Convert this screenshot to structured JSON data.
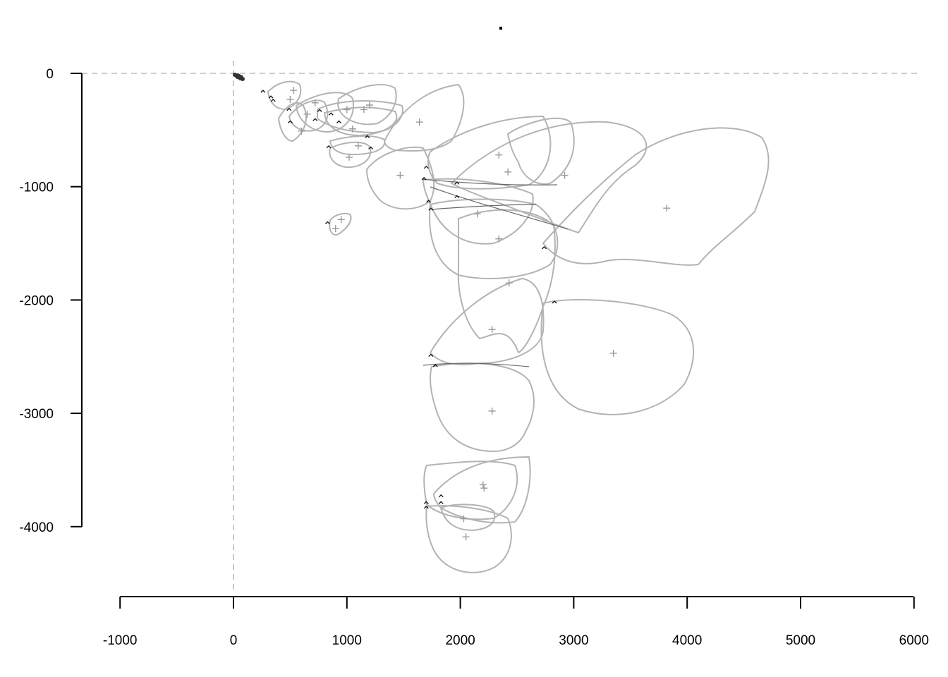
{
  "chart_data": {
    "type": "scatter",
    "title": ".",
    "xlabel": "",
    "ylabel": "",
    "xlim": [
      -1000,
      6000
    ],
    "ylim": [
      -4500,
      0
    ],
    "x_ticks": [
      -1000,
      0,
      1000,
      2000,
      3000,
      4000,
      5000,
      6000
    ],
    "y_ticks": [
      0,
      -1000,
      -2000,
      -3000,
      -4000
    ],
    "x_tick_labels": [
      "-1000",
      "0",
      "1000",
      "2000",
      "3000",
      "4000",
      "5000",
      "6000"
    ],
    "y_tick_labels": [
      "0",
      "-1000",
      "-2000",
      "-3000",
      "-4000"
    ],
    "reference_lines": {
      "x": 0,
      "y": 0
    },
    "grid": false,
    "colors": {
      "outline": "#b3b3b3",
      "centroid": "#9a9a9a",
      "arrow": "#111111",
      "reference": "#bdbdbd"
    },
    "centroids": [
      {
        "x": 3820,
        "y": -1190
      },
      {
        "x": 3350,
        "y": -2470
      },
      {
        "x": 2280,
        "y": -2980
      },
      {
        "x": 2430,
        "y": -1850
      },
      {
        "x": 2280,
        "y": -2260
      },
      {
        "x": 2340,
        "y": -1460
      },
      {
        "x": 2150,
        "y": -1240
      },
      {
        "x": 2340,
        "y": -720
      },
      {
        "x": 2920,
        "y": -900
      },
      {
        "x": 2420,
        "y": -870
      },
      {
        "x": 1470,
        "y": -900
      },
      {
        "x": 1640,
        "y": -430
      },
      {
        "x": 1020,
        "y": -740
      },
      {
        "x": 900,
        "y": -1370
      },
      {
        "x": 950,
        "y": -1290
      },
      {
        "x": 1100,
        "y": -640
      },
      {
        "x": 1200,
        "y": -280
      },
      {
        "x": 1150,
        "y": -320
      },
      {
        "x": 1050,
        "y": -490
      },
      {
        "x": 1000,
        "y": -320
      },
      {
        "x": 720,
        "y": -260
      },
      {
        "x": 650,
        "y": -360
      },
      {
        "x": 600,
        "y": -510
      },
      {
        "x": 530,
        "y": -150
      },
      {
        "x": 500,
        "y": -230
      },
      {
        "x": 2200,
        "y": -3630
      },
      {
        "x": 2210,
        "y": -3660
      },
      {
        "x": 2030,
        "y": -3930
      },
      {
        "x": 2050,
        "y": -4090
      }
    ],
    "arrows": [
      {
        "x": 260,
        "y": -150
      },
      {
        "x": 330,
        "y": -200
      },
      {
        "x": 350,
        "y": -230
      },
      {
        "x": 490,
        "y": -310
      },
      {
        "x": 500,
        "y": -420
      },
      {
        "x": 720,
        "y": -400
      },
      {
        "x": 760,
        "y": -320
      },
      {
        "x": 860,
        "y": -350
      },
      {
        "x": 930,
        "y": -420
      },
      {
        "x": 1180,
        "y": -550
      },
      {
        "x": 1210,
        "y": -650
      },
      {
        "x": 840,
        "y": -640
      },
      {
        "x": 830,
        "y": -1310
      },
      {
        "x": 1700,
        "y": -820
      },
      {
        "x": 1680,
        "y": -920
      },
      {
        "x": 1970,
        "y": -960
      },
      {
        "x": 1970,
        "y": -1080
      },
      {
        "x": 1720,
        "y": -1120
      },
      {
        "x": 1740,
        "y": -1190
      },
      {
        "x": 2740,
        "y": -1530
      },
      {
        "x": 2830,
        "y": -2010
      },
      {
        "x": 1740,
        "y": -2480
      },
      {
        "x": 1780,
        "y": -2570
      },
      {
        "x": 1830,
        "y": -3720
      },
      {
        "x": 1830,
        "y": -3780
      },
      {
        "x": 1700,
        "y": -3780
      },
      {
        "x": 1700,
        "y": -3820
      }
    ]
  }
}
